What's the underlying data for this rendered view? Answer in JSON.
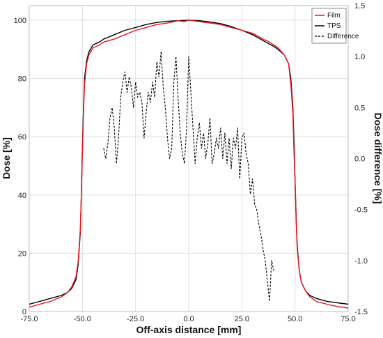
{
  "chart_data": {
    "type": "line",
    "xlabel": "Off-axis distance [mm]",
    "ylabel": "Dose [%]",
    "y2label": "Dose difference [%]",
    "xlim": [
      -75,
      75
    ],
    "ylim": [
      0,
      105
    ],
    "y2lim": [
      -1.5,
      1.5
    ],
    "xticks": [
      "-75.0",
      "-50.0",
      "-25.0",
      "0.0",
      "25.0",
      "50.0",
      "75.0"
    ],
    "xtick_values": [
      -75,
      -50,
      -25,
      0,
      25,
      50,
      75
    ],
    "yticks": [
      "0",
      "20",
      "40",
      "60",
      "80",
      "100"
    ],
    "ytick_values": [
      0,
      20,
      40,
      60,
      80,
      100
    ],
    "y2ticks": [
      "-1.5",
      "-1.0",
      "-0.5",
      "0.0",
      "0.5",
      "1.0",
      "1.5"
    ],
    "y2tick_values": [
      -1.5,
      -1.0,
      -0.5,
      0.0,
      0.5,
      1.0,
      1.5
    ],
    "grid": true,
    "legend_position": "top-right",
    "colors": {
      "film": "#e8141e",
      "tps": "#000000",
      "difference": "#000000"
    },
    "series": [
      {
        "name": "Film",
        "axis": "left",
        "style": "solid",
        "x": [
          -75,
          -70,
          -65,
          -60,
          -57,
          -55,
          -53,
          -52,
          -51,
          -50.5,
          -50,
          -49.5,
          -49,
          -48,
          -47,
          -45,
          -42,
          -40,
          -35,
          -30,
          -25,
          -20,
          -15,
          -10,
          -5,
          -2,
          0,
          2,
          5,
          10,
          15,
          20,
          25,
          30,
          35,
          38,
          40,
          42,
          45,
          47,
          48,
          49,
          49.5,
          50,
          50.5,
          51,
          52,
          53,
          55,
          57,
          60,
          65,
          70,
          75
        ],
        "y": [
          1.5,
          2.5,
          3.5,
          5,
          6.5,
          8.5,
          12,
          17,
          28,
          40,
          55,
          68,
          78,
          85,
          88,
          90.5,
          91.5,
          92.5,
          93.5,
          95,
          96.5,
          97.5,
          98.5,
          99,
          99.8,
          99.5,
          100,
          99.8,
          99.5,
          99,
          98.5,
          97.5,
          96.5,
          95.5,
          93.5,
          92.5,
          91.5,
          90.5,
          88,
          85,
          78,
          68,
          55,
          45,
          32,
          22,
          14,
          10,
          7,
          5,
          3.5,
          2.5,
          1.7,
          1.2
        ]
      },
      {
        "name": "TPS",
        "axis": "left",
        "style": "solid",
        "x": [
          -75,
          -70,
          -65,
          -60,
          -57,
          -55,
          -53,
          -52,
          -51,
          -50.5,
          -50,
          -49.5,
          -49,
          -48,
          -47,
          -45,
          -42,
          -40,
          -35,
          -30,
          -25,
          -20,
          -15,
          -10,
          -5,
          0,
          5,
          10,
          15,
          20,
          25,
          30,
          35,
          40,
          42,
          45,
          47,
          48,
          49,
          49.5,
          50,
          50.5,
          51,
          52,
          53,
          55,
          57,
          60,
          65,
          70,
          75
        ],
        "y": [
          2.5,
          3.5,
          4.5,
          5.5,
          6.5,
          8,
          11,
          16,
          27,
          40,
          56,
          70,
          80,
          86,
          89,
          91.5,
          92.5,
          93.5,
          95,
          96.5,
          97.5,
          98.5,
          99.2,
          99.6,
          99.8,
          100,
          99.8,
          99.4,
          98.8,
          97.8,
          96.5,
          95,
          93,
          91,
          90,
          88,
          85,
          80,
          70,
          58,
          45,
          33,
          23,
          14,
          10,
          7,
          5.5,
          4.5,
          3.5,
          3,
          2.5
        ]
      },
      {
        "name": "Difference",
        "axis": "right",
        "style": "dashed",
        "x": [
          -40,
          -39,
          -38,
          -37,
          -36,
          -35,
          -34,
          -33,
          -32,
          -31,
          -30,
          -29,
          -28,
          -27,
          -26,
          -25,
          -24,
          -23,
          -22,
          -21,
          -20,
          -19,
          -18,
          -17,
          -16,
          -15,
          -14,
          -13,
          -12,
          -11,
          -10,
          -9,
          -8,
          -7,
          -6,
          -5,
          -4,
          -3,
          -2,
          -1,
          0,
          1,
          2,
          3,
          4,
          5,
          6,
          7,
          8,
          9,
          10,
          11,
          12,
          13,
          14,
          15,
          16,
          17,
          18,
          19,
          20,
          21,
          22,
          23,
          24,
          25,
          26,
          27,
          28,
          29,
          30,
          31,
          32,
          33,
          34,
          35,
          36,
          37,
          38,
          39,
          40
        ],
        "y": [
          0.1,
          0.0,
          0.15,
          0.4,
          0.5,
          0.3,
          -0.05,
          0.2,
          0.6,
          0.75,
          0.85,
          0.65,
          0.8,
          0.7,
          0.5,
          0.75,
          0.6,
          0.65,
          0.55,
          0.2,
          0.45,
          0.65,
          0.55,
          0.75,
          0.6,
          0.95,
          0.8,
          1.05,
          0.7,
          0.5,
          0.2,
          0.0,
          0.1,
          0.75,
          1.0,
          0.6,
          0.25,
          0.05,
          -0.05,
          0.3,
          1.0,
          0.65,
          0.3,
          -0.05,
          0.2,
          0.35,
          0.1,
          0.25,
          0.0,
          0.15,
          0.4,
          -0.05,
          0.05,
          0.2,
          0.1,
          0.3,
          0.0,
          0.25,
          -0.05,
          0.2,
          -0.1,
          0.2,
          0.1,
          0.3,
          -0.2,
          0.2,
          0.25,
          0.05,
          -0.05,
          -0.35,
          -0.2,
          -0.45,
          -0.5,
          -0.65,
          -0.75,
          -0.9,
          -1.0,
          -1.2,
          -1.4,
          -1.0,
          -1.1
        ]
      }
    ]
  }
}
